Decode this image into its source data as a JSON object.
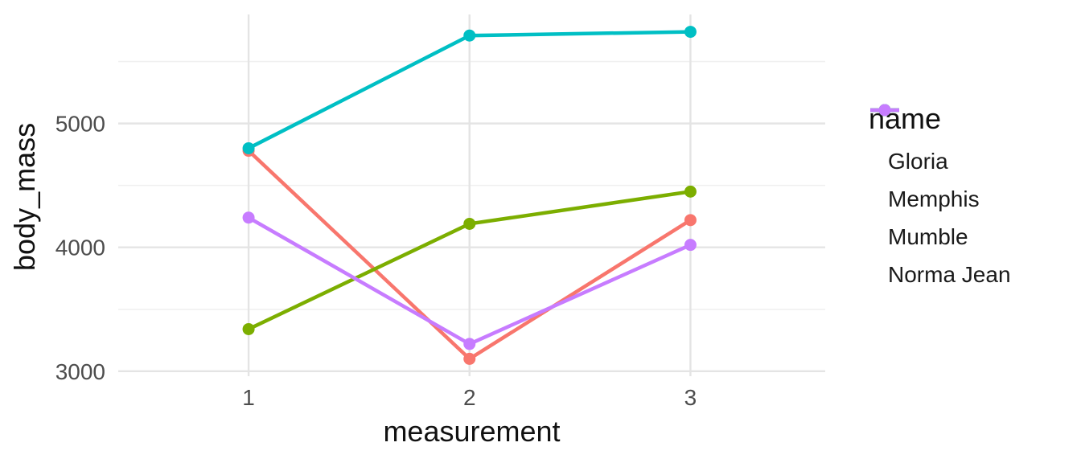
{
  "chart_data": {
    "type": "line",
    "title": "",
    "xlabel": "measurement",
    "ylabel": "body_mass",
    "x": [
      1,
      2,
      3
    ],
    "x_ticks": [
      1,
      2,
      3
    ],
    "y_ticks": [
      3000,
      4000,
      5000
    ],
    "y_minor_ticks": [
      3500,
      4500,
      5500
    ],
    "xlim": [
      0.41,
      3.61
    ],
    "ylim": [
      2960,
      5880
    ],
    "grid": "on",
    "legend_position": "right",
    "legend_title": "name",
    "series": [
      {
        "name": "Gloria",
        "color": "#F8766D",
        "values": [
          4780,
          3100,
          4220
        ]
      },
      {
        "name": "Memphis",
        "color": "#7CAE00",
        "values": [
          3340,
          4190,
          4450
        ]
      },
      {
        "name": "Mumble",
        "color": "#00BFC4",
        "values": [
          4800,
          5710,
          5740
        ]
      },
      {
        "name": "Norma Jean",
        "color": "#C77CFF",
        "values": [
          4240,
          3220,
          4020
        ]
      }
    ]
  },
  "axes": {
    "xlabel": "measurement",
    "ylabel": "body_mass",
    "x_tick_labels": [
      "1",
      "2",
      "3"
    ],
    "y_tick_labels": [
      "3000",
      "4000",
      "5000"
    ]
  },
  "legend": {
    "title": "name",
    "items": [
      "Gloria",
      "Memphis",
      "Mumble",
      "Norma Jean"
    ]
  },
  "colors": {
    "background": "#FFFFFF",
    "grid_major": "#E4E4E4",
    "grid_minor": "#F0F0F0",
    "tick_label": "#4D4D4D",
    "axis_title": "#111111"
  }
}
